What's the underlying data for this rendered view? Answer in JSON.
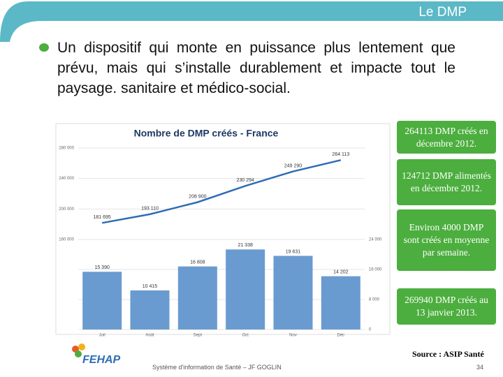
{
  "slide": {
    "header": "Le DMP",
    "bullet": "Un dispositif qui monte en puissance plus lentement que prévu, mais qui s’installe durablement et impacte tout le paysage. sanitaire et médico-social.",
    "callouts": [
      "264113 DMP créés en décembre 2012.",
      "124712 DMP alimentés en décembre 2012.",
      "Environ 4000 DMP sont créés en moyenne par semaine.",
      "269940 DMP créés au 13 janvier 2013."
    ],
    "source": "Source : ASIP Santé",
    "footer": "Système d'information de Santé – JF GOGLIN",
    "page_number": "34",
    "logo": "FEHAP"
  },
  "chart_data": {
    "type": "combo",
    "title": "Nombre de DMP créés - France",
    "categories": [
      "Juil",
      "Août",
      "Sept",
      "Oct",
      "Nov",
      "Déc"
    ],
    "series": [
      {
        "type": "line",
        "axis": "y",
        "color": "#2f6db5",
        "values": [
          181695,
          193110,
          208900,
          230294,
          249290,
          264113
        ],
        "value_labels": [
          "181 695",
          "193 110",
          "208 900",
          "230 294",
          "249 290",
          "264 113"
        ]
      },
      {
        "type": "bar",
        "axis": "y2",
        "color": "#6a9bd0",
        "values": [
          15390,
          10415,
          16808,
          21338,
          19631,
          14202
        ],
        "value_labels": [
          "15 390",
          "10 415",
          "16 808",
          "21 338",
          "19 631",
          "14 202"
        ]
      }
    ],
    "ylim": [
      160000,
      280000
    ],
    "yticks": [
      {
        "value": 160000,
        "label": "160 000"
      },
      {
        "value": 200000,
        "label": "200 000"
      },
      {
        "value": 240000,
        "label": "240 000"
      },
      {
        "value": 280000,
        "label": "280 000"
      }
    ],
    "y2lim": [
      0,
      24000
    ],
    "y2ticks": [
      {
        "value": 0,
        "label": "0"
      },
      {
        "value": 8000,
        "label": "8 000"
      },
      {
        "value": 16000,
        "label": "16 000"
      },
      {
        "value": 24000,
        "label": "24 000"
      }
    ],
    "grid": true
  }
}
